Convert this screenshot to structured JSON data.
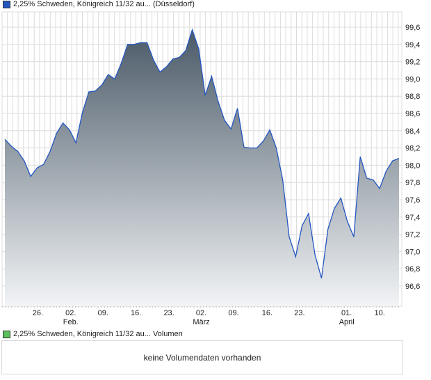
{
  "legend_price": "2,25% Schweden, Königreich 11/32 au... (Düsseldorf)",
  "legend_volume": "2,25% Schweden, Königreich 11/32 au... Volumen",
  "no_volume": "keine Volumendaten vorhanden",
  "colors": {
    "line": "#2456c0",
    "fill_top": "#4b5a68",
    "fill_bottom": "#f2f4f6",
    "price_swatch": "#2456c0",
    "volume_swatch": "#5cc15c",
    "grid": "#dcdcdc"
  },
  "chart_data": {
    "type": "area",
    "title": "2,25% Schweden, Königreich 11/32 au... (Düsseldorf)",
    "ylim": [
      96.42,
      99.78
    ],
    "yticks": [
      "96,6",
      "96,8",
      "97,0",
      "97,2",
      "97,4",
      "97,6",
      "97,8",
      "98,0",
      "98,2",
      "98,4",
      "98,6",
      "98,8",
      "99,0",
      "99,2",
      "99,4",
      "99,6"
    ],
    "ytick_values": [
      96.6,
      96.8,
      97.0,
      97.2,
      97.4,
      97.6,
      97.8,
      98.0,
      98.2,
      98.4,
      98.6,
      98.8,
      99.0,
      99.2,
      99.4,
      99.6
    ],
    "xticks": [
      {
        "label": "26.",
        "sub": "",
        "i": 5.1
      },
      {
        "label": "02.",
        "sub": "Feb.",
        "i": 10.2
      },
      {
        "label": "09.",
        "sub": "",
        "i": 15.2
      },
      {
        "label": "16.",
        "sub": "",
        "i": 20.3
      },
      {
        "label": "23.",
        "sub": "",
        "i": 25.4
      },
      {
        "label": "02.",
        "sub": "März",
        "i": 30.4
      },
      {
        "label": "09.",
        "sub": "",
        "i": 35.4
      },
      {
        "label": "16.",
        "sub": "",
        "i": 40.6
      },
      {
        "label": "23.",
        "sub": "",
        "i": 45.6
      },
      {
        "label": "01.",
        "sub": "April",
        "i": 52.9
      },
      {
        "label": "10.",
        "sub": "",
        "i": 58.0
      }
    ],
    "values": [
      98.3,
      98.22,
      98.16,
      98.05,
      97.87,
      97.97,
      98.01,
      98.16,
      98.37,
      98.49,
      98.41,
      98.26,
      98.61,
      98.85,
      98.86,
      98.93,
      99.05,
      99.0,
      99.18,
      99.4,
      99.4,
      99.42,
      99.42,
      99.22,
      99.08,
      99.14,
      99.23,
      99.25,
      99.33,
      99.57,
      99.35,
      98.81,
      99.03,
      98.74,
      98.52,
      98.42,
      98.66,
      98.21,
      98.2,
      98.2,
      98.28,
      98.41,
      98.2,
      97.83,
      97.17,
      96.94,
      97.3,
      97.44,
      96.96,
      96.69,
      97.26,
      97.5,
      97.62,
      97.35,
      97.17,
      98.1,
      97.85,
      97.83,
      97.73,
      97.93,
      98.05,
      98.08
    ]
  }
}
